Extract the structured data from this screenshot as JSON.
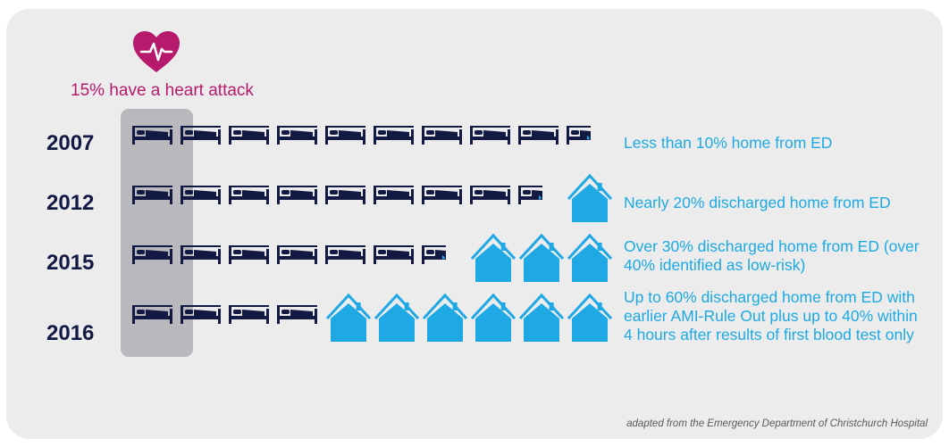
{
  "colors": {
    "panel": "#ececec",
    "highlight": "#b9b9bd",
    "heart": "#b51a6d",
    "bed": "#121a44",
    "house": "#1ea8e4",
    "text_blue": "#1da9e2",
    "year": "#121a44"
  },
  "icons": {
    "heart": "heart-pulse-icon",
    "bed": "hospital-bed-icon",
    "house": "home-icon"
  },
  "heart_caption": "15% have a heart attack",
  "rows": [
    {
      "year": "2007",
      "text": "Less than 10% home from ED",
      "beds": 9.5,
      "houses": 0.5
    },
    {
      "year": "2012",
      "text": "Nearly 20% discharged home from ED",
      "beds": 8.5,
      "houses": 1.5
    },
    {
      "year": "2015",
      "text": "Over 30% discharged home from ED (over 40% identified as low-risk)",
      "beds": 6.5,
      "houses": 3.5
    },
    {
      "year": "2016",
      "text": "Up to 60% discharged home from ED with earlier AMI-Rule Out plus up to 40% within 4 hours after results of first blood test only",
      "beds": 4,
      "houses": 6
    }
  ],
  "footnote": "adapted from the Emergency Department of Christchurch Hospital"
}
